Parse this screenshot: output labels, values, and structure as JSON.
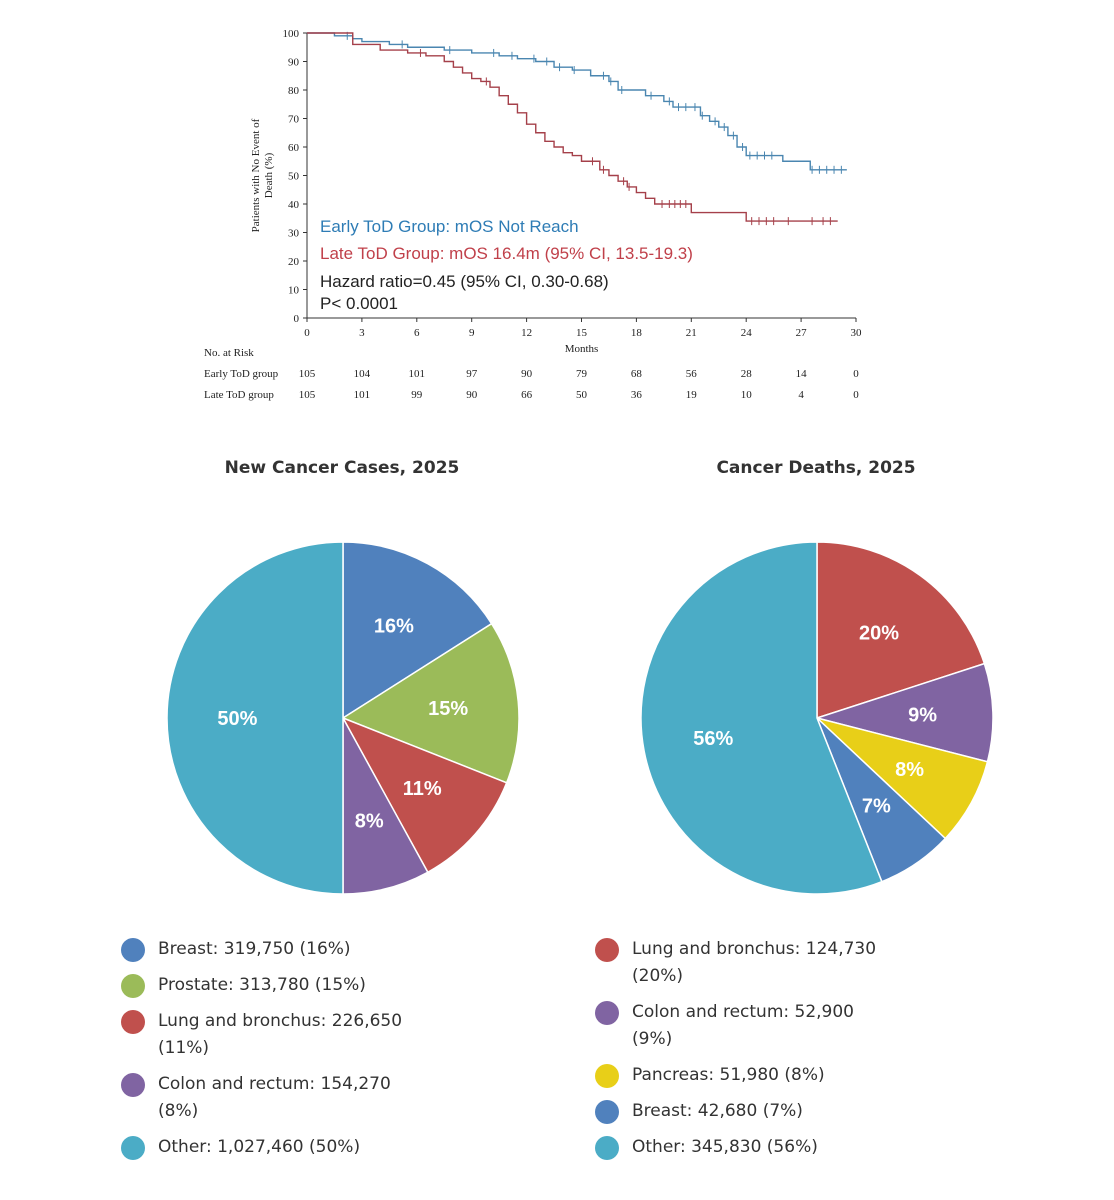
{
  "chart_data": [
    {
      "type": "line",
      "subtype": "kaplan-meier",
      "title": "",
      "xlabel": "Months",
      "ylabel": "Patients with No Event of Death (%)",
      "xlim": [
        0,
        30
      ],
      "ylim": [
        0,
        100
      ],
      "xticks": [
        0,
        3,
        6,
        9,
        12,
        15,
        18,
        21,
        24,
        27,
        30
      ],
      "yticks": [
        0,
        10,
        20,
        30,
        40,
        50,
        60,
        70,
        80,
        90,
        100
      ],
      "grid": false,
      "annotations": [
        {
          "text": "Early ToD Group: mOS Not Reach",
          "color": "#2e7cb5"
        },
        {
          "text": "Late ToD Group: mOS 16.4m (95% CI, 13.5-19.3)",
          "color": "#c0404a"
        },
        {
          "text": "Hazard ratio=0.45 (95% CI, 0.30-0.68)",
          "color": "#222222"
        },
        {
          "text": "P< 0.0001",
          "color": "#222222"
        }
      ],
      "series": [
        {
          "name": "Early ToD group",
          "color": "#4a86b0",
          "x": [
            0,
            1.5,
            2.5,
            3,
            3.8,
            4.5,
            5.5,
            6.5,
            7.5,
            9,
            10.5,
            11.5,
            12.5,
            13.5,
            14.5,
            15.5,
            16.5,
            17,
            18.5,
            19.5,
            20,
            21.5,
            22,
            22.5,
            23,
            23.5,
            24,
            26,
            27.5,
            29.5
          ],
          "y": [
            100,
            99,
            98,
            97,
            97,
            96,
            95,
            95,
            94,
            93,
            92,
            91,
            90,
            88,
            87,
            85,
            83,
            80,
            78,
            76,
            74,
            71,
            69,
            67,
            64,
            60,
            57,
            55,
            52,
            52
          ],
          "censor_x": [
            2.2,
            5.2,
            7.8,
            10.2,
            11.2,
            12.4,
            13.1,
            13.8,
            14.6,
            16.2,
            16.6,
            17.2,
            18.8,
            19.8,
            20.3,
            20.7,
            21.2,
            21.6,
            22.3,
            22.8,
            23.3,
            23.8,
            24.2,
            24.6,
            25.0,
            25.4,
            27.6,
            28.0,
            28.4,
            28.8,
            29.2
          ]
        },
        {
          "name": "Late ToD group",
          "color": "#a5404a",
          "x": [
            0,
            2.5,
            4,
            5.5,
            6.5,
            7.5,
            8,
            8.5,
            9,
            9.5,
            10,
            10.5,
            11,
            11.5,
            12,
            12.5,
            13,
            13.5,
            14,
            14.5,
            15,
            16,
            16.5,
            17,
            17.5,
            18,
            18.5,
            19,
            21,
            24,
            29
          ],
          "y": [
            100,
            96,
            94,
            93,
            92,
            90,
            88,
            86,
            84,
            83,
            81,
            78,
            75,
            72,
            68,
            65,
            62,
            60,
            58,
            57,
            55,
            52,
            50,
            48,
            46,
            44,
            42,
            40,
            37,
            34,
            34
          ],
          "censor_x": [
            6.2,
            9.8,
            15.6,
            16.2,
            17.3,
            17.6,
            19.4,
            19.8,
            20.1,
            20.4,
            20.7,
            24.3,
            24.7,
            25.1,
            25.5,
            26.3,
            27.6,
            28.2,
            28.6
          ]
        }
      ],
      "risk_table": {
        "title": "No. at Risk",
        "times": [
          0,
          3,
          6,
          9,
          12,
          15,
          18,
          21,
          24,
          27,
          30
        ],
        "rows": [
          {
            "label": "Early ToD group",
            "counts": [
              105,
              104,
              101,
              97,
              90,
              79,
              68,
              56,
              28,
              14,
              0
            ]
          },
          {
            "label": "Late ToD group",
            "counts": [
              105,
              101,
              99,
              90,
              66,
              50,
              36,
              19,
              10,
              4,
              0
            ]
          }
        ]
      }
    },
    {
      "type": "pie",
      "title": "New Cancer Cases, 2025",
      "slices": [
        {
          "name": "Breast",
          "value": 319750,
          "pct": 16,
          "label": "16%",
          "legend": "Breast: 319,750 (16%)",
          "color": "#5081bd"
        },
        {
          "name": "Prostate",
          "value": 313780,
          "pct": 15,
          "label": "15%",
          "legend": "Prostate: 313,780 (15%)",
          "color": "#9bbb59"
        },
        {
          "name": "Lung and bronchus",
          "value": 226650,
          "pct": 11,
          "label": "11%",
          "legend": "Lung and bronchus: 226,650 (11%)",
          "color": "#c0504d"
        },
        {
          "name": "Colon and rectum",
          "value": 154270,
          "pct": 8,
          "label": "8%",
          "legend": "Colon and rectum: 154,270 (8%)",
          "color": "#8064a2"
        },
        {
          "name": "Other",
          "value": 1027460,
          "pct": 50,
          "label": "50%",
          "legend": "Other: 1,027,460 (50%)",
          "color": "#4bacc6"
        }
      ]
    },
    {
      "type": "pie",
      "title": "Cancer Deaths, 2025",
      "slices": [
        {
          "name": "Lung and bronchus",
          "value": 124730,
          "pct": 20,
          "label": "20%",
          "legend": "Lung and bronchus: 124,730 (20%)",
          "color": "#c0504d"
        },
        {
          "name": "Colon and rectum",
          "value": 52900,
          "pct": 9,
          "label": "9%",
          "legend": "Colon and rectum: 52,900 (9%)",
          "color": "#8064a2"
        },
        {
          "name": "Pancreas",
          "value": 51980,
          "pct": 8,
          "label": "8%",
          "legend": "Pancreas: 51,980 (8%)",
          "color": "#e8cf18"
        },
        {
          "name": "Breast",
          "value": 42680,
          "pct": 7,
          "label": "7%",
          "legend": "Breast: 42,680 (7%)",
          "color": "#5081bd"
        },
        {
          "name": "Other",
          "value": 345830,
          "pct": 56,
          "label": "56%",
          "legend": "Other: 345,830 (56%)",
          "color": "#4bacc6"
        }
      ]
    }
  ]
}
